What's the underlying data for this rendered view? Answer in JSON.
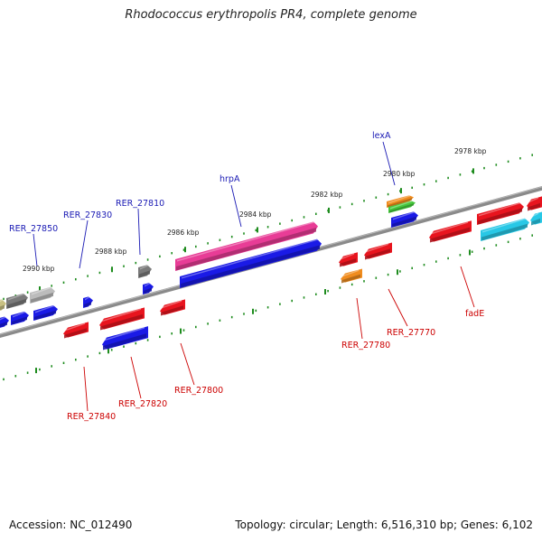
{
  "title": "Rhodococcus erythropolis PR4, complete genome",
  "accession": "Accession: NC_012490",
  "stats": "Topology: circular; Length: 6,516,310 bp; Genes: 6,102",
  "ticks": [
    "2990 kbp",
    "2988 kbp",
    "2986 kbp",
    "2984 kbp",
    "2982 kbp",
    "2980 kbp",
    "2978 kbp"
  ],
  "top_labels": [
    "RER_27850",
    "RER_27830",
    "RER_27810",
    "hrpA",
    "lexA"
  ],
  "bottom_labels": [
    "RER_27840",
    "RER_27820",
    "RER_27800",
    "RER_27780",
    "RER_27770",
    "fadE"
  ],
  "colors": {
    "forward_label": "#1a1ab4",
    "reverse_label": "#cc0000",
    "red": "#e8141e",
    "blue": "#1a1ae6",
    "pink": "#e83c96",
    "orange": "#f08c1e",
    "green": "#46c83c",
    "cyan": "#28c8e6",
    "gray": "#7a7a7a",
    "lightgray": "#bcbcbc",
    "khaki": "#c8c082",
    "tick_dot": "#1e8c1e",
    "backbone": "#8a8a8a"
  }
}
